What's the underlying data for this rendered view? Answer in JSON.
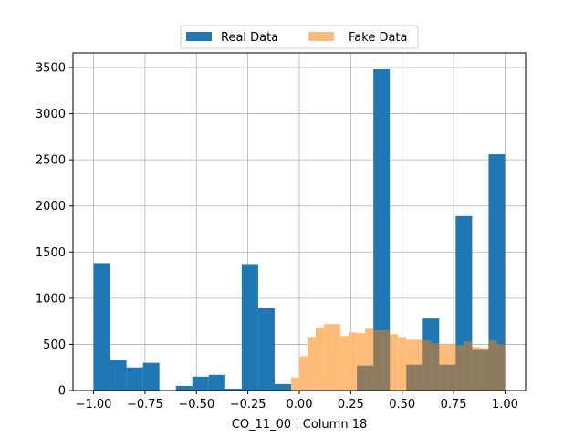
{
  "chart_data": {
    "type": "bar",
    "title": "",
    "xlabel": "CO_11_00 : Column 18",
    "ylabel": "",
    "xlim": [
      -1.1,
      1.1
    ],
    "ylim": [
      0,
      3500
    ],
    "xticks": [
      -1.0,
      -0.75,
      -0.5,
      -0.25,
      0.0,
      0.25,
      0.5,
      0.75,
      1.0
    ],
    "xtick_labels": [
      "−1.00",
      "−0.75",
      "−0.50",
      "−0.25",
      "0.00",
      "0.25",
      "0.50",
      "0.75",
      "1.00"
    ],
    "yticks": [
      0,
      500,
      1000,
      1500,
      2000,
      2500,
      3000,
      3500
    ],
    "ytick_labels": [
      "0",
      "500",
      "1000",
      "1500",
      "2000",
      "2500",
      "3000",
      "3500"
    ],
    "grid": true,
    "legend": {
      "placement": "top-center",
      "columns": 2
    },
    "series": [
      {
        "name": "Real Data",
        "color": "#1f77b4",
        "alpha": 1.0,
        "bins": [
          {
            "x0": -1.0,
            "x1": -0.92,
            "value": 1380
          },
          {
            "x0": -0.92,
            "x1": -0.84,
            "value": 330
          },
          {
            "x0": -0.84,
            "x1": -0.76,
            "value": 250
          },
          {
            "x0": -0.76,
            "x1": -0.68,
            "value": 300
          },
          {
            "x0": -0.68,
            "x1": -0.6,
            "value": 0
          },
          {
            "x0": -0.6,
            "x1": -0.52,
            "value": 50
          },
          {
            "x0": -0.52,
            "x1": -0.44,
            "value": 150
          },
          {
            "x0": -0.44,
            "x1": -0.36,
            "value": 170
          },
          {
            "x0": -0.36,
            "x1": -0.28,
            "value": 20
          },
          {
            "x0": -0.28,
            "x1": -0.2,
            "value": 1370
          },
          {
            "x0": -0.2,
            "x1": -0.12,
            "value": 890
          },
          {
            "x0": -0.12,
            "x1": -0.04,
            "value": 70
          },
          {
            "x0": -0.04,
            "x1": 0.04,
            "value": 0
          },
          {
            "x0": 0.04,
            "x1": 0.12,
            "value": 0
          },
          {
            "x0": 0.12,
            "x1": 0.2,
            "value": 0
          },
          {
            "x0": 0.2,
            "x1": 0.28,
            "value": 0
          },
          {
            "x0": 0.28,
            "x1": 0.36,
            "value": 270
          },
          {
            "x0": 0.36,
            "x1": 0.44,
            "value": 3480
          },
          {
            "x0": 0.44,
            "x1": 0.52,
            "value": 0
          },
          {
            "x0": 0.52,
            "x1": 0.6,
            "value": 280
          },
          {
            "x0": 0.6,
            "x1": 0.68,
            "value": 780
          },
          {
            "x0": 0.68,
            "x1": 0.76,
            "value": 280
          },
          {
            "x0": 0.76,
            "x1": 0.84,
            "value": 1890
          },
          {
            "x0": 0.84,
            "x1": 0.92,
            "value": 440
          },
          {
            "x0": 0.92,
            "x1": 1.0,
            "value": 2560
          }
        ]
      },
      {
        "name": "Fake Data",
        "color": "#ffbb78",
        "alpha": 1.0,
        "bins": [
          {
            "x0": -0.04,
            "x1": 0.0,
            "value": 140
          },
          {
            "x0": 0.0,
            "x1": 0.04,
            "value": 370
          },
          {
            "x0": 0.04,
            "x1": 0.08,
            "value": 580
          },
          {
            "x0": 0.08,
            "x1": 0.12,
            "value": 680
          },
          {
            "x0": 0.12,
            "x1": 0.16,
            "value": 720
          },
          {
            "x0": 0.16,
            "x1": 0.2,
            "value": 720
          },
          {
            "x0": 0.2,
            "x1": 0.24,
            "value": 590
          },
          {
            "x0": 0.24,
            "x1": 0.28,
            "value": 630
          },
          {
            "x0": 0.28,
            "x1": 0.32,
            "value": 620
          },
          {
            "x0": 0.32,
            "x1": 0.36,
            "value": 670
          },
          {
            "x0": 0.36,
            "x1": 0.4,
            "value": 650
          },
          {
            "x0": 0.4,
            "x1": 0.44,
            "value": 650
          },
          {
            "x0": 0.44,
            "x1": 0.48,
            "value": 610
          },
          {
            "x0": 0.48,
            "x1": 0.52,
            "value": 580
          },
          {
            "x0": 0.52,
            "x1": 0.56,
            "value": 550
          },
          {
            "x0": 0.56,
            "x1": 0.6,
            "value": 550
          },
          {
            "x0": 0.6,
            "x1": 0.64,
            "value": 540
          },
          {
            "x0": 0.64,
            "x1": 0.68,
            "value": 510
          },
          {
            "x0": 0.68,
            "x1": 0.72,
            "value": 500
          },
          {
            "x0": 0.72,
            "x1": 0.76,
            "value": 500
          },
          {
            "x0": 0.76,
            "x1": 0.8,
            "value": 490
          },
          {
            "x0": 0.8,
            "x1": 0.84,
            "value": 530
          },
          {
            "x0": 0.84,
            "x1": 0.88,
            "value": 470
          },
          {
            "x0": 0.88,
            "x1": 0.92,
            "value": 460
          },
          {
            "x0": 0.92,
            "x1": 0.96,
            "value": 540
          },
          {
            "x0": 0.96,
            "x1": 1.0,
            "value": 500
          }
        ]
      }
    ],
    "overlap_color": "#8c7b5e"
  }
}
